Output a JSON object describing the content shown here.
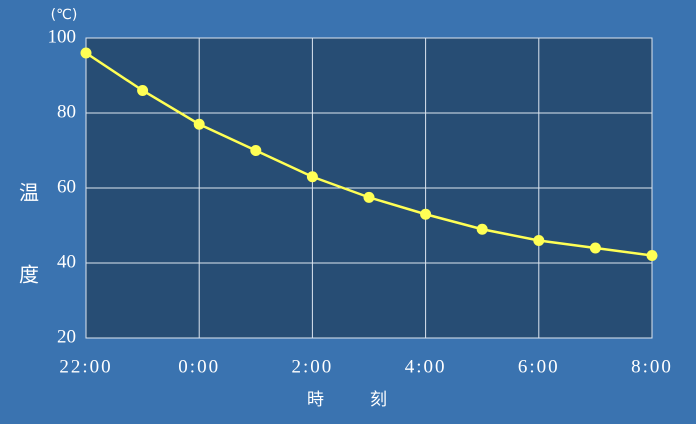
{
  "chart_data": {
    "type": "line",
    "unit_label": "(℃)",
    "ylabel": "温度",
    "xlabel": "時刻",
    "categories": [
      "22:00",
      null,
      "0:00",
      null,
      "2:00",
      null,
      "4:00",
      null,
      "6:00",
      null,
      "8:00"
    ],
    "values": [
      96,
      86,
      77,
      70,
      63,
      57.5,
      53,
      49,
      46,
      44,
      42
    ],
    "color": "#ffff55",
    "ylim": [
      20,
      100
    ],
    "yticks": [
      20,
      40,
      60,
      80,
      100
    ],
    "grid": true
  }
}
